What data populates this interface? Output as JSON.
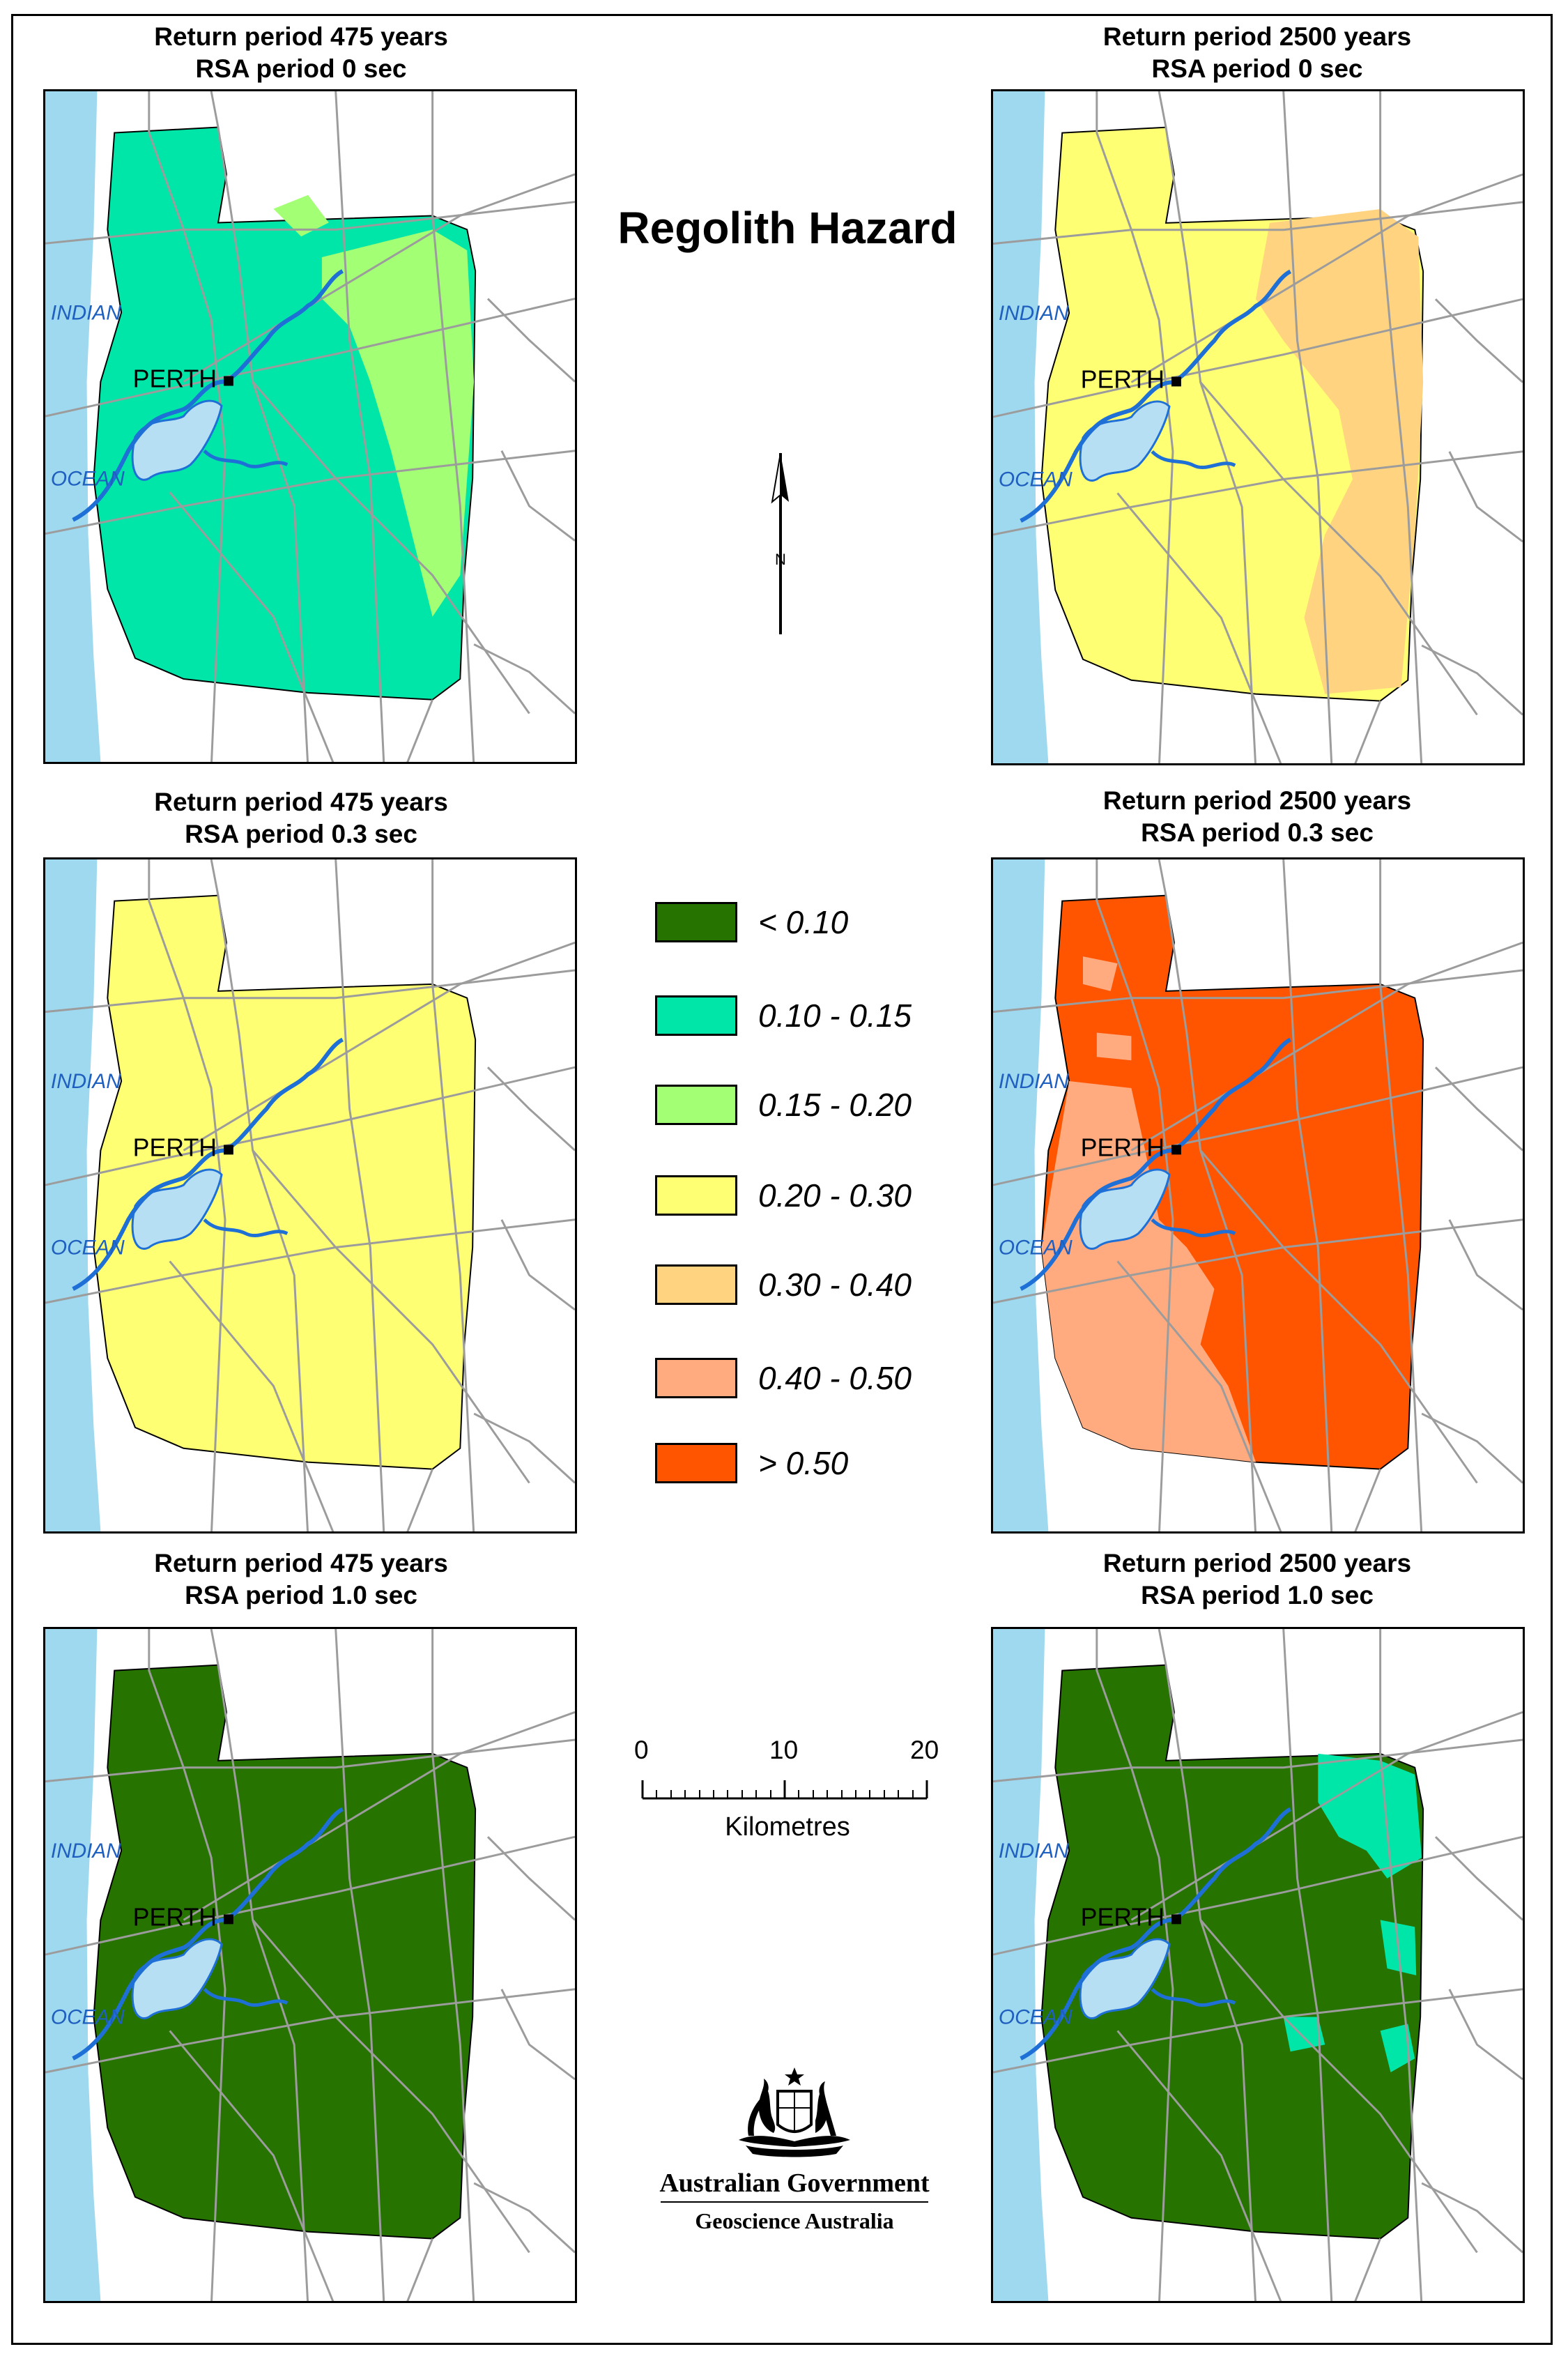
{
  "title": "Regolith Hazard",
  "panels": [
    {
      "title_line1": "Return period 475 years",
      "title_line2": "RSA period 0 sec",
      "fill": "#00e6a9",
      "patch": "#a3ff73",
      "patch_level": "0.15 - 0.20",
      "fill_level": "0.10 - 0.15"
    },
    {
      "title_line1": "Return period 2500 years",
      "title_line2": "RSA period 0 sec",
      "fill": "#ffff73",
      "patch": "#ffd37f",
      "patch_level": "0.30 - 0.40",
      "fill_level": "0.20 - 0.30"
    },
    {
      "title_line1": "Return period 475 years",
      "title_line2": "RSA period 0.3 sec",
      "fill": "#ffff73",
      "patch": "#ffff73",
      "patch_level": "0.20 - 0.30",
      "fill_level": "0.20 - 0.30"
    },
    {
      "title_line1": "Return period 2500 years",
      "title_line2": "RSA period 0.3 sec",
      "fill": "#ff5500",
      "patch": "#ffaa7f",
      "patch_level": "0.40 - 0.50",
      "fill_level": "> 0.50"
    },
    {
      "title_line1": "Return period 475 years",
      "title_line2": "RSA period 1.0 sec",
      "fill": "#267300",
      "patch": "#267300",
      "patch_level": "< 0.10",
      "fill_level": "< 0.10"
    },
    {
      "title_line1": "Return period 2500 years",
      "title_line2": "RSA period 1.0 sec",
      "fill": "#267300",
      "patch": "#00e6a9",
      "patch_level": "0.10 - 0.15",
      "fill_level": "< 0.10"
    }
  ],
  "map_labels": {
    "city": "PERTH",
    "ocean_1": "INDIAN",
    "ocean_2": "OCEAN"
  },
  "legend": [
    {
      "label": "< 0.10",
      "color": "#267300"
    },
    {
      "label": "0.10 - 0.15",
      "color": "#00e6a9"
    },
    {
      "label": "0.15 - 0.20",
      "color": "#a3ff73"
    },
    {
      "label": "0.20 - 0.30",
      "color": "#ffff73"
    },
    {
      "label": "0.30 - 0.40",
      "color": "#ffd37f"
    },
    {
      "label": "0.40 - 0.50",
      "color": "#ffaa7f"
    },
    {
      "label": "> 0.50",
      "color": "#ff5500"
    }
  ],
  "north_label": "N",
  "scale": {
    "ticks": [
      "0",
      "10",
      "20"
    ],
    "unit": "Kilometres"
  },
  "logo": {
    "government": "Australian Government",
    "agency": "Geoscience Australia"
  },
  "colors": {
    "ocean": "#9fd9ef",
    "river": "#1e6fd6",
    "roads": "#9c9c9c"
  }
}
